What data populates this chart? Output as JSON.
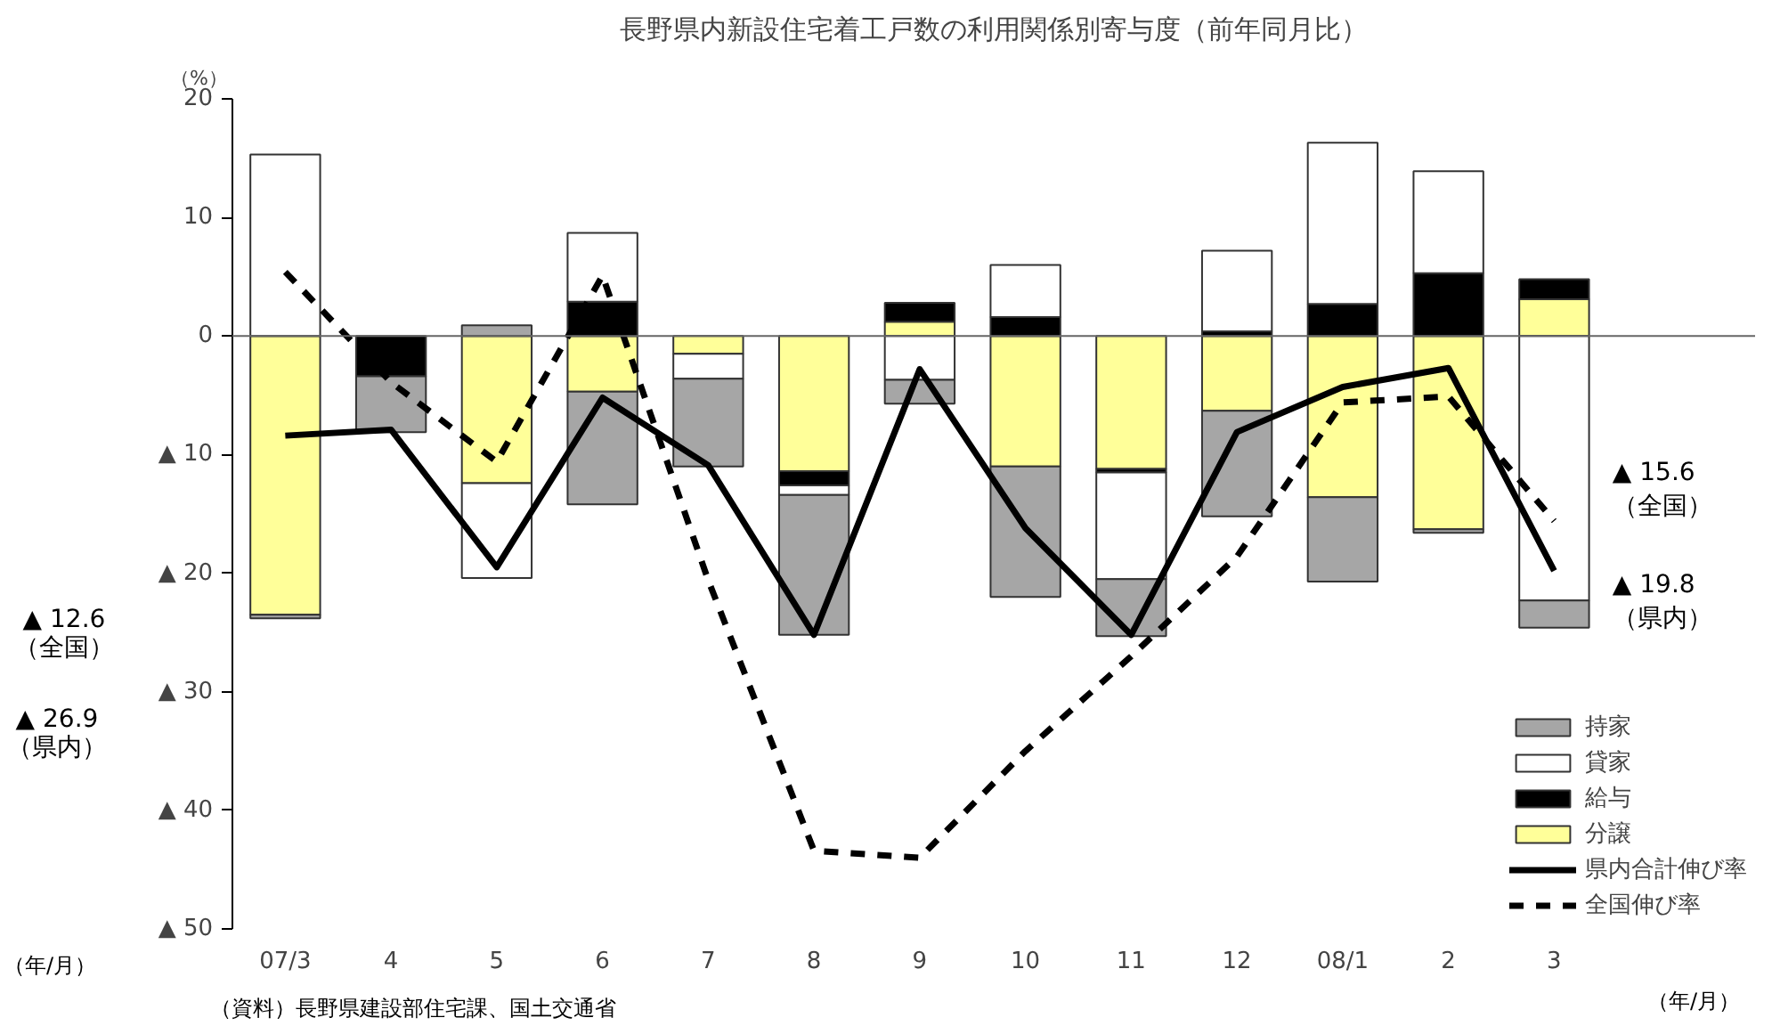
{
  "chart_data": {
    "type": "bar",
    "stacked": true,
    "title": "長野県内新設住宅着工戸数の利用関係別寄与度（前年同月比）",
    "ylabel": "（%）",
    "xlabel": "（年/月）",
    "categories": [
      "07/3",
      "4",
      "5",
      "6",
      "7",
      "8",
      "9",
      "10",
      "11",
      "12",
      "08/1",
      "2",
      "3"
    ],
    "series": [
      {
        "name": "分譲",
        "color": "#ffff99",
        "values": [
          -23.5,
          0,
          -12.4,
          -4.7,
          -1.5,
          -11.4,
          1.2,
          -11.0,
          -11.2,
          -6.3,
          -13.6,
          -16.3,
          3.1
        ]
      },
      {
        "name": "給与",
        "color": "#000000",
        "values": [
          0,
          -3.4,
          0,
          2.9,
          0,
          -1.2,
          1.6,
          1.6,
          -0.3,
          0.4,
          2.7,
          5.3,
          1.7
        ]
      },
      {
        "name": "貸家",
        "color": "#ffffff",
        "values": [
          15.3,
          0,
          -8.0,
          5.8,
          -2.1,
          -0.8,
          -3.7,
          4.4,
          -9.0,
          6.8,
          13.6,
          8.6,
          -22.3
        ]
      },
      {
        "name": "持家",
        "color": "#a6a6a6",
        "values": [
          -0.3,
          -4.7,
          0.9,
          -9.5,
          -7.4,
          -11.8,
          -2.0,
          -11.0,
          -4.8,
          -8.9,
          -7.1,
          -0.3,
          -2.3
        ]
      },
      {
        "name": "県内合計伸び率",
        "type": "line",
        "line_style": "solid",
        "color": "#000000",
        "values": [
          -8.4,
          -7.9,
          -19.5,
          -5.2,
          -10.9,
          -25.2,
          -2.8,
          -16.2,
          -25.2,
          -8.1,
          -4.3,
          -2.7,
          -19.8
        ]
      },
      {
        "name": "全国伸び率",
        "type": "line",
        "line_style": "dashed",
        "color": "#000000",
        "values": [
          5.4,
          -3.9,
          -10.6,
          5.1,
          -20.6,
          -43.4,
          -44.0,
          -35.0,
          -27.0,
          -18.6,
          -5.6,
          -5.1,
          -15.6
        ]
      }
    ],
    "ylim": [
      -50,
      20
    ],
    "yticks": [
      20,
      10,
      0,
      {
        "value": -10,
        "label": "▲ 10"
      },
      {
        "value": -20,
        "label": "▲ 20"
      },
      {
        "value": -30,
        "label": "▲ 30"
      },
      {
        "value": -40,
        "label": "▲ 40"
      },
      {
        "value": -50,
        "label": "▲ 50"
      }
    ],
    "grid": false,
    "legend": "bottom right",
    "ref_lines": [
      {
        "axis": "y",
        "value": 0,
        "color": "#666666"
      }
    ],
    "annotations": [
      {
        "text": "▲ 15.6\n（全国）",
        "x": "3",
        "y": -15.6
      },
      {
        "text": "▲ 19.8\n（県内）",
        "x": "3",
        "y": -19.8
      },
      "（資料）長野県建設部住宅課、国土交通省",
      "▲ 12.6\n（全国）",
      "▲ 26.9\n（県内）",
      "（年/月）"
    ]
  }
}
